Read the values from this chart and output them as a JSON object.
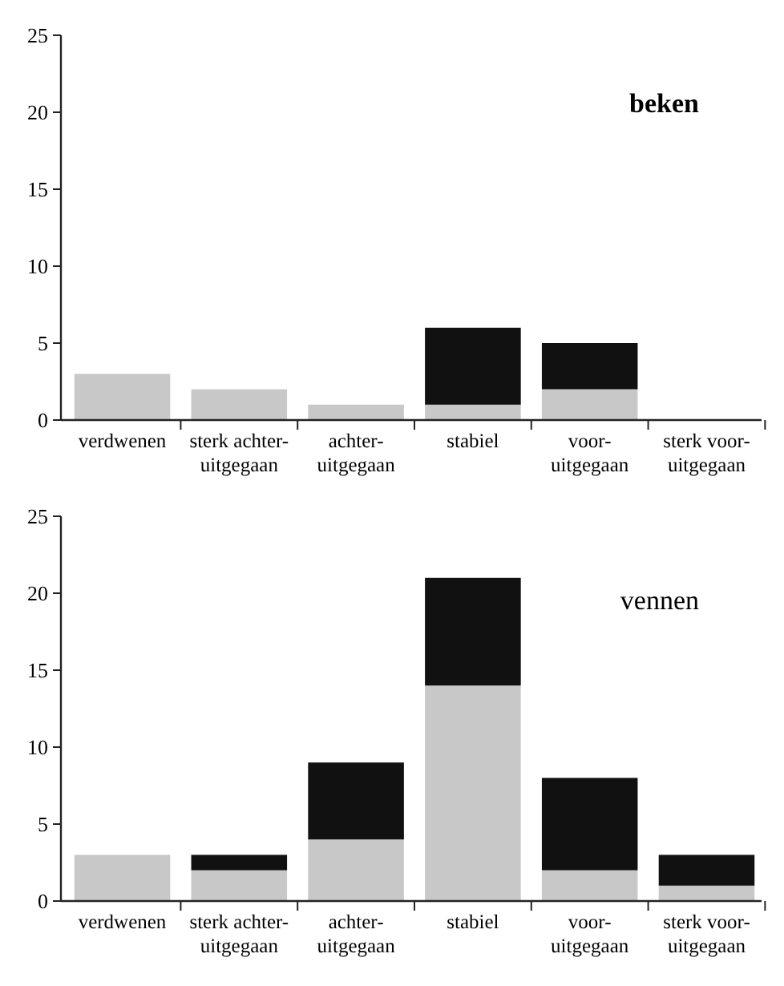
{
  "chart_data": [
    {
      "type": "bar",
      "title": "beken",
      "categories": [
        "verdwenen",
        "sterk achter-\nuitgegaan",
        "achter-\nuitgegaan",
        "stabiel",
        "voor-\nuitgegaan",
        "sterk voor-\nuitgegaan"
      ],
      "stacked": true,
      "ylim": [
        0,
        25
      ],
      "yticks": [
        0,
        5,
        10,
        15,
        20,
        25
      ],
      "series": [
        {
          "color": "#c8c8c8",
          "values": [
            3,
            2,
            1,
            1,
            2,
            0
          ]
        },
        {
          "color": "#111111",
          "values": [
            0,
            0,
            0,
            5,
            3,
            0
          ]
        }
      ]
    },
    {
      "type": "bar",
      "title": "vennen",
      "categories": [
        "verdwenen",
        "sterk achter-\nuitgegaan",
        "achter-\nuitgegaan",
        "stabiel",
        "voor-\nuitgegaan",
        "sterk voor-\nuitgegaan"
      ],
      "stacked": true,
      "ylim": [
        0,
        25
      ],
      "yticks": [
        0,
        5,
        10,
        15,
        20,
        25
      ],
      "series": [
        {
          "color": "#c8c8c8",
          "values": [
            3,
            2,
            4,
            14,
            2,
            1
          ]
        },
        {
          "color": "#111111",
          "values": [
            0,
            1,
            5,
            7,
            6,
            2
          ]
        }
      ]
    }
  ]
}
